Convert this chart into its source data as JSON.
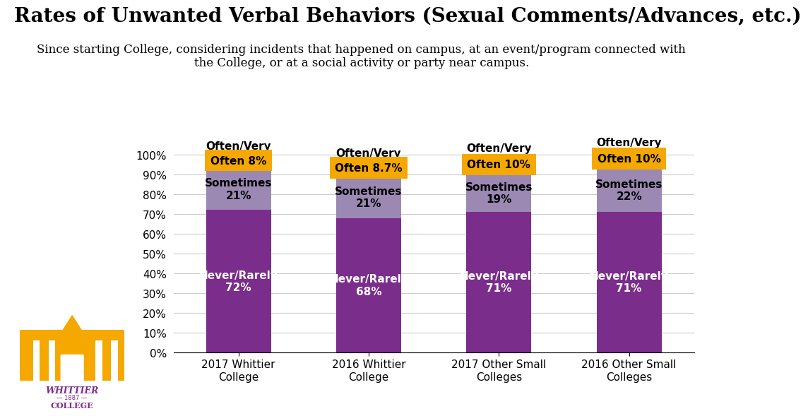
{
  "title": "Rates of Unwanted Verbal Behaviors (Sexual Comments/Advances, etc.)",
  "subtitle": "Since starting College, considering incidents that happened on campus, at an event/program connected with\nthe College, or at a social activity or party near campus.",
  "categories": [
    "2017 Whittier\nCollege",
    "2016 Whittier\nCollege",
    "2017 Other Small\nColleges",
    "2016 Other Small\nColleges"
  ],
  "never_rarely": [
    72,
    68,
    71,
    71
  ],
  "sometimes": [
    21,
    21,
    19,
    22
  ],
  "often": [
    8,
    8.7,
    10,
    10
  ],
  "never_rarely_labels": [
    "Never/Rarely\n72%",
    "Never/Rarely\n68%",
    "Never/Rarely\n71%",
    "Never/Rarely\n71%"
  ],
  "sometimes_labels": [
    "Sometimes\n21%",
    "Sometimes\n21%",
    "Sometimes\n19%",
    "Sometimes\n22%"
  ],
  "often_line1": [
    "Often/Very",
    "Often/Very",
    "Often/Very",
    "Often/Very"
  ],
  "often_line2": [
    "Often 8%",
    "Often 8.7%",
    "Often 10%",
    "Often 10%"
  ],
  "color_never": "#7B2D8B",
  "color_sometimes": "#9B89B4",
  "color_often": "#F5A800",
  "background": "#FFFFFF",
  "title_fontsize": 20,
  "subtitle_fontsize": 12,
  "label_fontsize": 11,
  "tick_fontsize": 11
}
